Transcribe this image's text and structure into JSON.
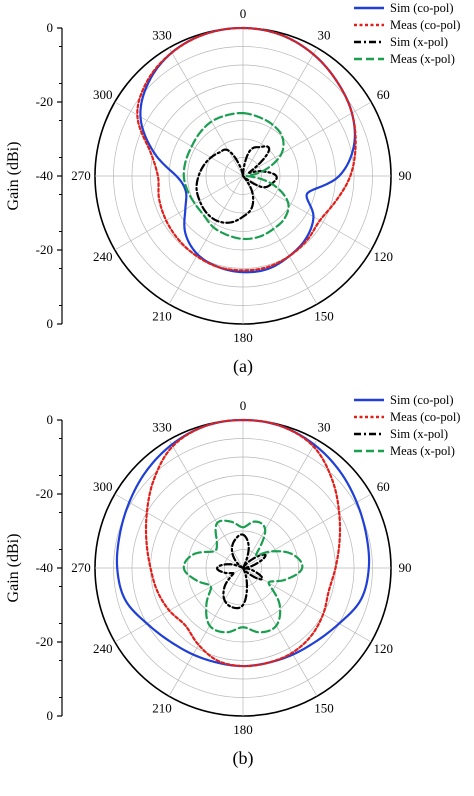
{
  "chart_data": [
    {
      "type": "polar-line",
      "caption": "(a)",
      "ylabel": "Gain (dBi)",
      "r_ticks": [
        "0",
        "-20",
        "-40",
        "-20",
        "0"
      ],
      "angle_ticks": [
        "0",
        "30",
        "60",
        "90",
        "120",
        "150",
        "180",
        "210",
        "240",
        "270",
        "300",
        "330"
      ],
      "r_range": [
        -40,
        0
      ],
      "grid": true,
      "legend_position": "top-right",
      "angle": [
        0,
        15,
        30,
        45,
        60,
        75,
        90,
        105,
        120,
        135,
        150,
        165,
        180,
        195,
        210,
        225,
        240,
        255,
        270,
        285,
        300,
        315,
        330,
        345
      ],
      "series": [
        {
          "name": "Sim (co-pol)",
          "color": "#1f3fd6",
          "dash": "solid",
          "values": [
            0,
            -0.5,
            -2,
            -4,
            -6,
            -9,
            -14,
            -22,
            -18,
            -16,
            -15,
            -14,
            -14,
            -14.5,
            -15.5,
            -18,
            -22,
            -24,
            -22,
            -15,
            -8,
            -4,
            -1.5,
            -0.3
          ]
        },
        {
          "name": "Meas (co-pol)",
          "color": "#e0201b",
          "dash": "dot",
          "values": [
            0,
            -0.5,
            -2,
            -4,
            -6,
            -8.5,
            -11,
            -14,
            -16,
            -15.5,
            -15,
            -14.5,
            -14.5,
            -14.5,
            -15,
            -15.5,
            -16,
            -16.5,
            -17,
            -14,
            -7,
            -3.5,
            -1.5,
            -0.3
          ]
        },
        {
          "name": "Sim (x-pol)",
          "color": "#000000",
          "dash": "dashdot",
          "values": [
            -40,
            -33,
            -31,
            -30,
            -38,
            -35,
            -31,
            -32,
            -34,
            -40,
            -35,
            -31,
            -29,
            -27,
            -26,
            -26,
            -26.5,
            -27,
            -28,
            -29,
            -30,
            -31,
            -32,
            -38
          ]
        },
        {
          "name": "Meas (x-pol)",
          "color": "#1a9e4f",
          "dash": "dash",
          "values": [
            -23,
            -23.5,
            -24,
            -25,
            -28,
            -34,
            -39,
            -32,
            -26,
            -24,
            -23.5,
            -23,
            -23,
            -23.5,
            -24,
            -25,
            -25,
            -24.5,
            -24,
            -24,
            -24,
            -23.5,
            -23,
            -23
          ]
        }
      ]
    },
    {
      "type": "polar-line",
      "caption": "(b)",
      "ylabel": "Gain (dBi)",
      "r_ticks": [
        "0",
        "-20",
        "-40",
        "-20",
        "0"
      ],
      "angle_ticks": [
        "0",
        "30",
        "60",
        "90",
        "120",
        "150",
        "180",
        "210",
        "240",
        "270",
        "300",
        "330"
      ],
      "r_range": [
        -40,
        0
      ],
      "grid": true,
      "legend_position": "top-right",
      "angle": [
        0,
        15,
        30,
        45,
        60,
        75,
        90,
        105,
        120,
        135,
        150,
        165,
        180,
        195,
        210,
        225,
        240,
        255,
        270,
        285,
        300,
        315,
        330,
        345
      ],
      "series": [
        {
          "name": "Sim (co-pol)",
          "color": "#1f3fd6",
          "dash": "solid",
          "values": [
            0,
            -0.3,
            -1.5,
            -3,
            -4.5,
            -5.5,
            -6,
            -7,
            -10,
            -12,
            -13,
            -13.5,
            -13.5,
            -13.5,
            -13,
            -12,
            -10,
            -7,
            -6,
            -5.5,
            -4.5,
            -3,
            -1.5,
            -0.3
          ]
        },
        {
          "name": "Meas (co-pol)",
          "color": "#e0201b",
          "dash": "dot",
          "values": [
            0,
            -0.3,
            -2,
            -6,
            -10,
            -13,
            -15,
            -16,
            -15,
            -14,
            -13.5,
            -13.5,
            -13.5,
            -14,
            -16,
            -18,
            -17,
            -16,
            -15,
            -13,
            -10,
            -6,
            -2,
            -0.3
          ]
        },
        {
          "name": "Sim (x-pol)",
          "color": "#000000",
          "dash": "dashdot",
          "values": [
            -31,
            -34,
            -40,
            -37,
            -33,
            -37,
            -40,
            -37,
            -34,
            -38,
            -40,
            -36,
            -30,
            -29,
            -30,
            -33,
            -37,
            -35,
            -33,
            -36,
            -40,
            -37,
            -34,
            -32
          ]
        },
        {
          "name": "Meas (x-pol)",
          "color": "#1a9e4f",
          "dash": "dash",
          "values": [
            -29,
            -27,
            -28,
            -35,
            -31,
            -26,
            -24,
            -28,
            -32,
            -26,
            -22,
            -22,
            -24,
            -22,
            -22,
            -26,
            -30,
            -27,
            -24,
            -26,
            -31,
            -30,
            -26,
            -27
          ]
        }
      ]
    }
  ]
}
